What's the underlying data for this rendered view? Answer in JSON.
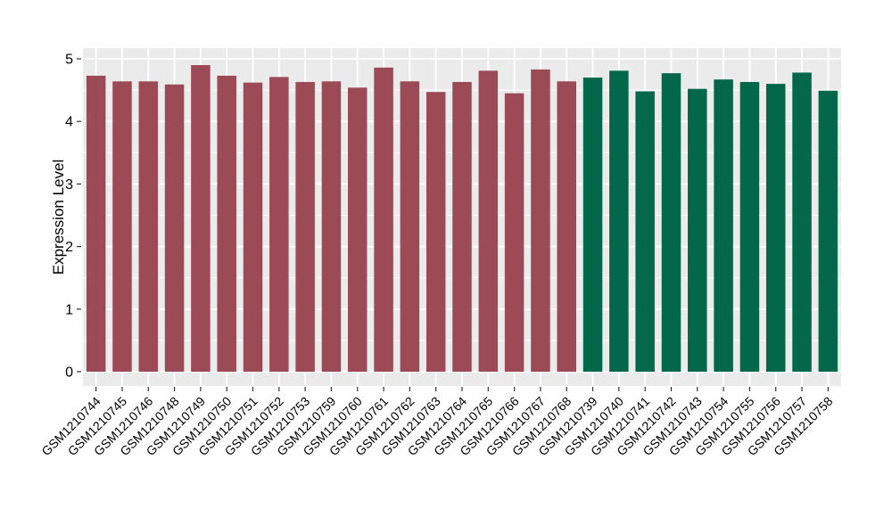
{
  "chart_data": {
    "type": "bar",
    "title": "",
    "xlabel": "",
    "ylabel": "Expression Level",
    "ylim": [
      -0.23,
      5.17
    ],
    "yticks": [
      0,
      1,
      2,
      3,
      4,
      5
    ],
    "minor_gridlines": [
      0.5,
      1.5,
      2.5,
      3.5,
      4.5
    ],
    "grid": "on",
    "legend_position": "none",
    "categories": [
      "GSM1210744",
      "GSM1210745",
      "GSM1210746",
      "GSM1210748",
      "GSM1210749",
      "GSM1210750",
      "GSM1210751",
      "GSM1210752",
      "GSM1210753",
      "GSM1210759",
      "GSM1210760",
      "GSM1210761",
      "GSM1210762",
      "GSM1210763",
      "GSM1210764",
      "GSM1210765",
      "GSM1210766",
      "GSM1210767",
      "GSM1210768",
      "GSM1210739",
      "GSM1210740",
      "GSM1210741",
      "GSM1210742",
      "GSM1210743",
      "GSM1210754",
      "GSM1210755",
      "GSM1210756",
      "GSM1210757",
      "GSM1210758"
    ],
    "values": [
      4.73,
      4.64,
      4.64,
      4.59,
      4.9,
      4.73,
      4.62,
      4.71,
      4.63,
      4.64,
      4.54,
      4.86,
      4.64,
      4.47,
      4.63,
      4.81,
      4.45,
      4.83,
      4.64,
      4.7,
      4.81,
      4.48,
      4.77,
      4.52,
      4.67,
      4.63,
      4.6,
      4.78,
      4.49
    ],
    "bar_groups": [
      0,
      0,
      0,
      0,
      0,
      0,
      0,
      0,
      0,
      0,
      0,
      0,
      0,
      0,
      0,
      0,
      0,
      0,
      0,
      1,
      1,
      1,
      1,
      1,
      1,
      1,
      1,
      1,
      1
    ],
    "group_colors": [
      "#9C4A55",
      "#026849"
    ]
  },
  "theme": {
    "page_bg": "#FFFFFF",
    "panel_bg": "#EBEBEB",
    "grid_color": "#FFFFFF",
    "tick_color": "#333333",
    "text_color": "#000000"
  }
}
